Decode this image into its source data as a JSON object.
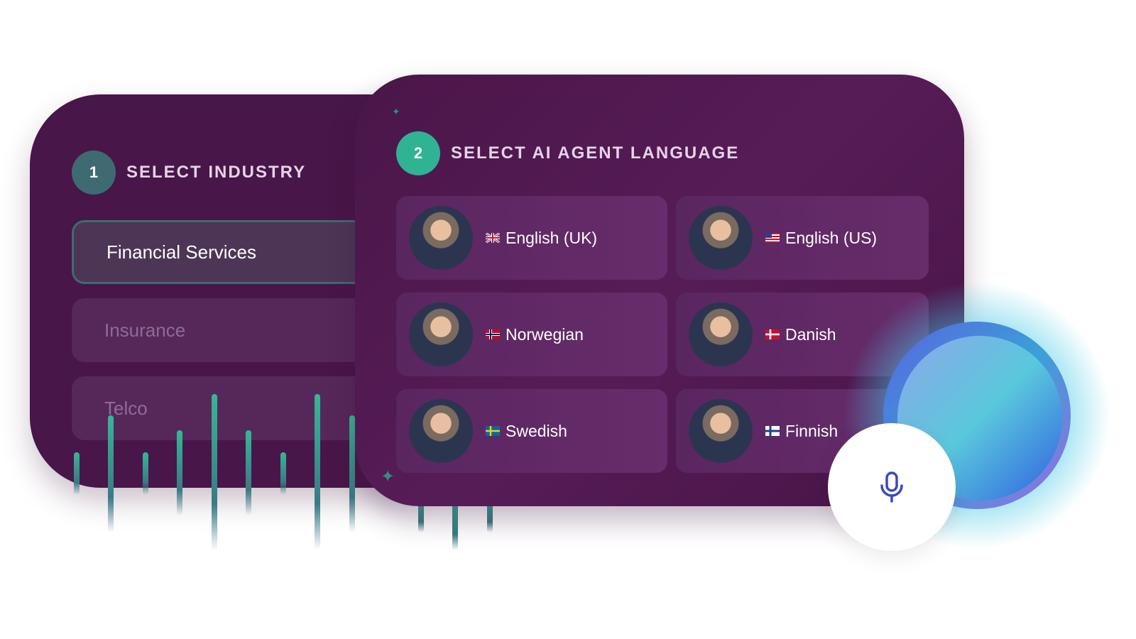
{
  "industry": {
    "step": "1",
    "title": "SELECT INDUSTRY",
    "items": [
      {
        "label": "Financial Services",
        "selected": true
      },
      {
        "label": "Insurance",
        "selected": false
      },
      {
        "label": "Telco",
        "selected": false
      }
    ]
  },
  "language": {
    "step": "2",
    "title": "SELECT AI AGENT LANGUAGE",
    "items": [
      {
        "label": "English (UK)",
        "flag": "uk"
      },
      {
        "label": "English (US)",
        "flag": "us"
      },
      {
        "label": "Norwegian",
        "flag": "no"
      },
      {
        "label": "Danish",
        "flag": "dk"
      },
      {
        "label": "Swedish",
        "flag": "se"
      },
      {
        "label": "Finnish",
        "flag": "fi"
      }
    ]
  },
  "voice": {
    "icon": "microphone-icon"
  },
  "colors": {
    "card": "#481648",
    "step1": "#3e6b72",
    "step2": "#2fb393",
    "accent": "#36b894",
    "mic": "#3b4bb8"
  }
}
